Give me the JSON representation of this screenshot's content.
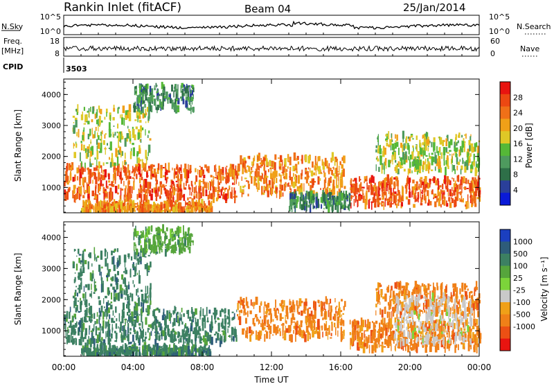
{
  "header": {
    "station": "Rankin Inlet (fitACF)",
    "beam": "Beam 04",
    "date": "25/Jan/2014"
  },
  "aux_panels": {
    "nsky_label": "N.Sky",
    "nsky_ticks": [
      "10^5",
      "10^0"
    ],
    "nsearch_label": "N.Search",
    "nsearch_ticks": [
      "10^5",
      "10^0"
    ],
    "freq_label_1": "Freq.",
    "freq_label_2": "[MHz]",
    "freq_ticks": [
      "18",
      "8"
    ],
    "nave_label": "Nave",
    "nave_ticks": [
      "60",
      "0"
    ],
    "cpid_label": "CPID",
    "cpid_value": "3503"
  },
  "chart_data": [
    {
      "type": "heatmap",
      "panel": "power",
      "ylabel": "Slant Range [km]",
      "xlabel": "",
      "ylim": [
        180,
        4500
      ],
      "yticks": [
        "1000",
        "2000",
        "3000",
        "4000"
      ],
      "colorbar_label": "Power [dB]",
      "colorbar_ticks": [
        "4",
        "8",
        "12",
        "16",
        "20",
        "24",
        "28"
      ],
      "colorbar_colors": [
        "#0a1ad8",
        "#2a3f9a",
        "#2e6f48",
        "#4e9a5e",
        "#55b837",
        "#dfc826",
        "#f0a018",
        "#f07018",
        "#ec4812",
        "#e81410"
      ],
      "bands": [
        {
          "t0": 0.0,
          "t1": 10.0,
          "r0": 600,
          "r1": 1700,
          "level": 28
        },
        {
          "t0": 10.0,
          "t1": 16.2,
          "r0": 750,
          "r1": 2000,
          "level": 24
        },
        {
          "t0": 16.5,
          "t1": 24.0,
          "r0": 400,
          "r1": 1300,
          "level": 28
        },
        {
          "t0": 1.0,
          "t1": 8.5,
          "r0": 200,
          "r1": 500,
          "level": 24
        },
        {
          "t0": 18.0,
          "t1": 24.0,
          "r0": 1500,
          "r1": 2700,
          "level": 18
        },
        {
          "t0": 0.5,
          "t1": 5.0,
          "r0": 1700,
          "r1": 3600,
          "level": 16
        },
        {
          "t0": 4.0,
          "t1": 7.5,
          "r0": 3500,
          "r1": 4300,
          "level": 12
        },
        {
          "t0": 13.0,
          "t1": 16.5,
          "r0": 300,
          "r1": 800,
          "level": 10
        }
      ]
    },
    {
      "type": "heatmap",
      "panel": "velocity",
      "ylabel": "Slant Range [km]",
      "xlabel": "Time UT",
      "x_ticks": [
        "00:00",
        "04:00",
        "08:00",
        "12:00",
        "16:00",
        "20:00",
        "00:00"
      ],
      "ylim": [
        180,
        4500
      ],
      "yticks": [
        "1000",
        "2000",
        "3000",
        "4000"
      ],
      "colorbar_label": "Velocity [m s⁻¹]",
      "colorbar_ticks": [
        "1000",
        "500",
        "100",
        "25",
        "-25",
        "-100",
        "-500",
        "-1000"
      ],
      "colorbar_colors": [
        "#1b3fc0",
        "#2e5c7a",
        "#3c8062",
        "#56a53c",
        "#7cd43a",
        "#c9c9c9",
        "#f0a018",
        "#f08018",
        "#ec5014",
        "#e81410"
      ],
      "bands": [
        {
          "t0": 0.0,
          "t1": 10.0,
          "r0": 600,
          "r1": 1700,
          "level": 300
        },
        {
          "t0": 10.0,
          "t1": 16.2,
          "r0": 750,
          "r1": 2000,
          "level": -300
        },
        {
          "t0": 16.5,
          "t1": 24.0,
          "r0": 400,
          "r1": 1300,
          "level": -300
        },
        {
          "t0": 18.0,
          "t1": 24.0,
          "r0": 1500,
          "r1": 2500,
          "level": -100
        },
        {
          "t0": 19.0,
          "t1": 23.5,
          "r0": 600,
          "r1": 2100,
          "level": 0
        },
        {
          "t0": 0.5,
          "t1": 5.0,
          "r0": 1700,
          "r1": 3600,
          "level": 300
        },
        {
          "t0": 4.0,
          "t1": 7.5,
          "r0": 3500,
          "r1": 4300,
          "level": 100
        },
        {
          "t0": 1.0,
          "t1": 8.5,
          "r0": 200,
          "r1": 500,
          "level": 300
        }
      ]
    }
  ]
}
